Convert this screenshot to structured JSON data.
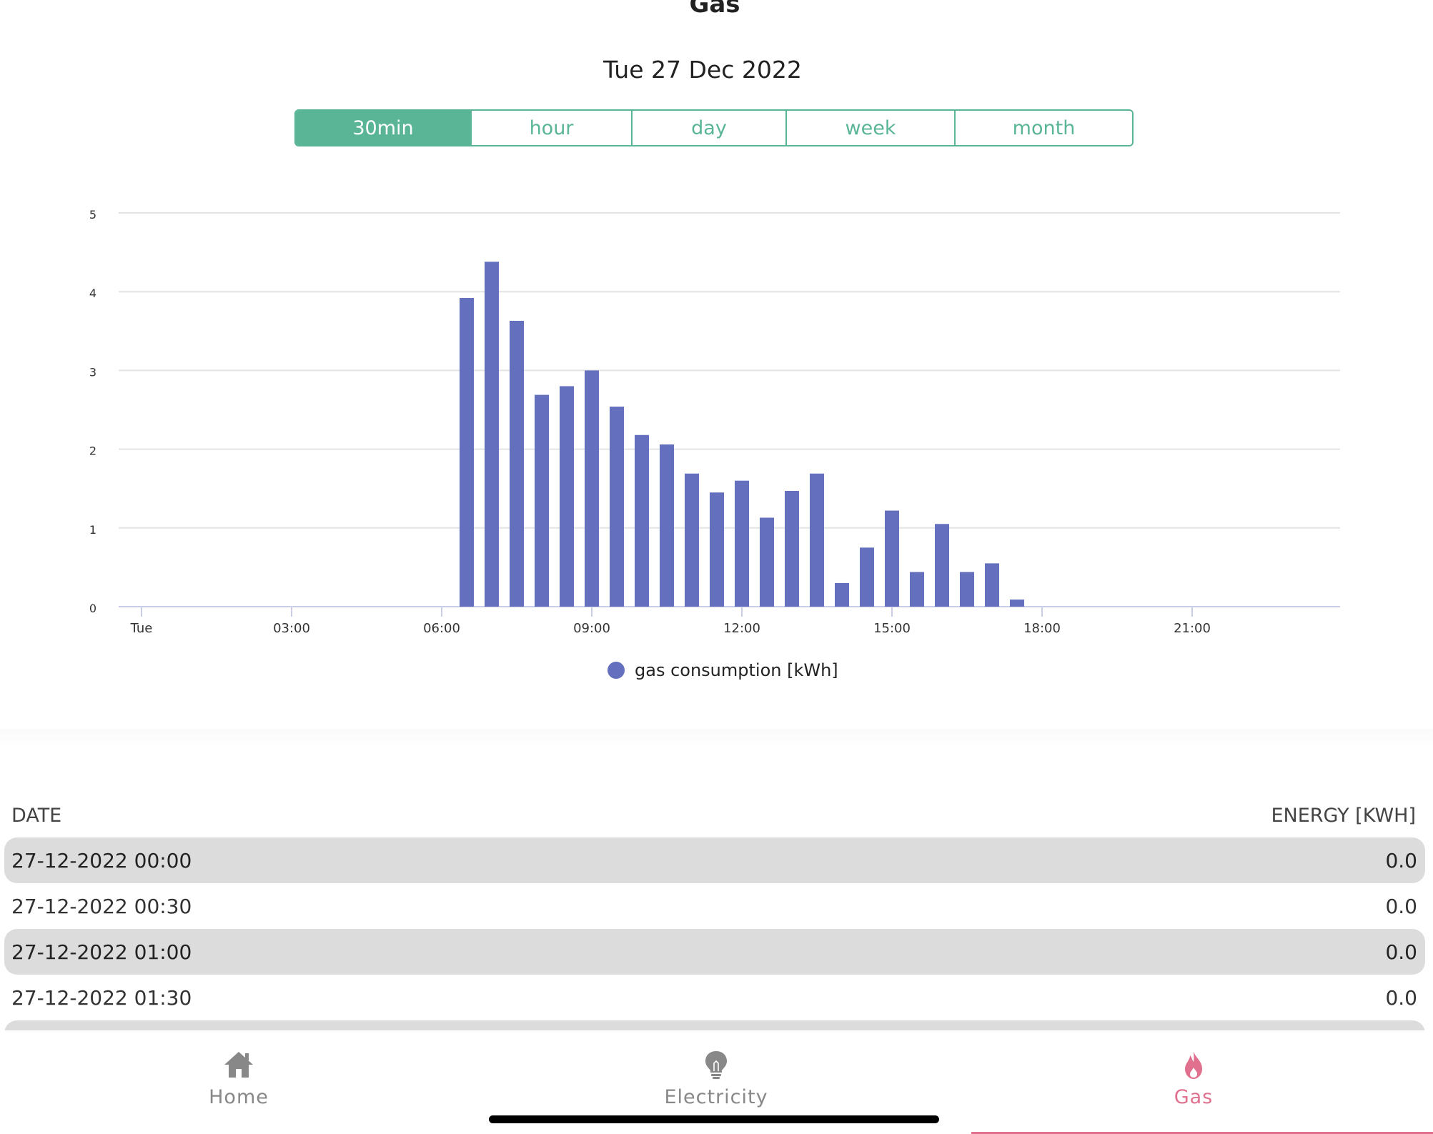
{
  "page": {
    "title": "Gas",
    "date": "Tue 27 Dec 2022"
  },
  "segments": [
    {
      "label": "30min",
      "active": true
    },
    {
      "label": "hour",
      "active": false
    },
    {
      "label": "day",
      "active": false
    },
    {
      "label": "week",
      "active": false
    },
    {
      "label": "month",
      "active": false
    }
  ],
  "chart_data": {
    "type": "bar",
    "title": "",
    "xlabel": "",
    "ylabel": "",
    "ylim": [
      0,
      5
    ],
    "yticks": [
      0,
      1,
      2,
      3,
      4,
      5
    ],
    "xticks": [
      "Tue",
      "03:00",
      "06:00",
      "09:00",
      "12:00",
      "15:00",
      "18:00",
      "21:00"
    ],
    "grid": true,
    "legend_position": "bottom-center",
    "color": "#6470be",
    "series": [
      {
        "name": "gas consumption [kWh]",
        "points": [
          {
            "x": "06:30",
            "y": 3.92
          },
          {
            "x": "07:00",
            "y": 4.38
          },
          {
            "x": "07:30",
            "y": 3.63
          },
          {
            "x": "08:00",
            "y": 2.69
          },
          {
            "x": "08:30",
            "y": 2.8
          },
          {
            "x": "09:00",
            "y": 3.0
          },
          {
            "x": "09:30",
            "y": 2.54
          },
          {
            "x": "10:00",
            "y": 2.18
          },
          {
            "x": "10:30",
            "y": 2.06
          },
          {
            "x": "11:00",
            "y": 1.69
          },
          {
            "x": "11:30",
            "y": 1.45
          },
          {
            "x": "12:00",
            "y": 1.6
          },
          {
            "x": "12:30",
            "y": 1.13
          },
          {
            "x": "13:00",
            "y": 1.47
          },
          {
            "x": "13:30",
            "y": 1.69
          },
          {
            "x": "14:00",
            "y": 0.3
          },
          {
            "x": "14:30",
            "y": 0.75
          },
          {
            "x": "15:00",
            "y": 1.22
          },
          {
            "x": "15:30",
            "y": 0.44
          },
          {
            "x": "16:00",
            "y": 1.05
          },
          {
            "x": "16:30",
            "y": 0.44
          },
          {
            "x": "17:00",
            "y": 0.55
          },
          {
            "x": "17:30",
            "y": 0.09
          }
        ]
      }
    ]
  },
  "table": {
    "col_date": "DATE",
    "col_energy": "ENERGY [KWH]",
    "rows": [
      {
        "date": "27-12-2022 00:00",
        "value": "0.0"
      },
      {
        "date": "27-12-2022 00:30",
        "value": "0.0"
      },
      {
        "date": "27-12-2022 01:00",
        "value": "0.0"
      },
      {
        "date": "27-12-2022 01:30",
        "value": "0.0"
      },
      {
        "date": "",
        "value": ""
      }
    ]
  },
  "tabs": [
    {
      "label": "Home",
      "icon": "home-icon",
      "active": false
    },
    {
      "label": "Electricity",
      "icon": "lightbulb-icon",
      "active": false
    },
    {
      "label": "Gas",
      "icon": "flame-icon",
      "active": true
    }
  ],
  "colors": {
    "accent": "#5ab596",
    "bar": "#6470be",
    "active_tab": "#e0708e",
    "inactive_tab": "#888888"
  }
}
